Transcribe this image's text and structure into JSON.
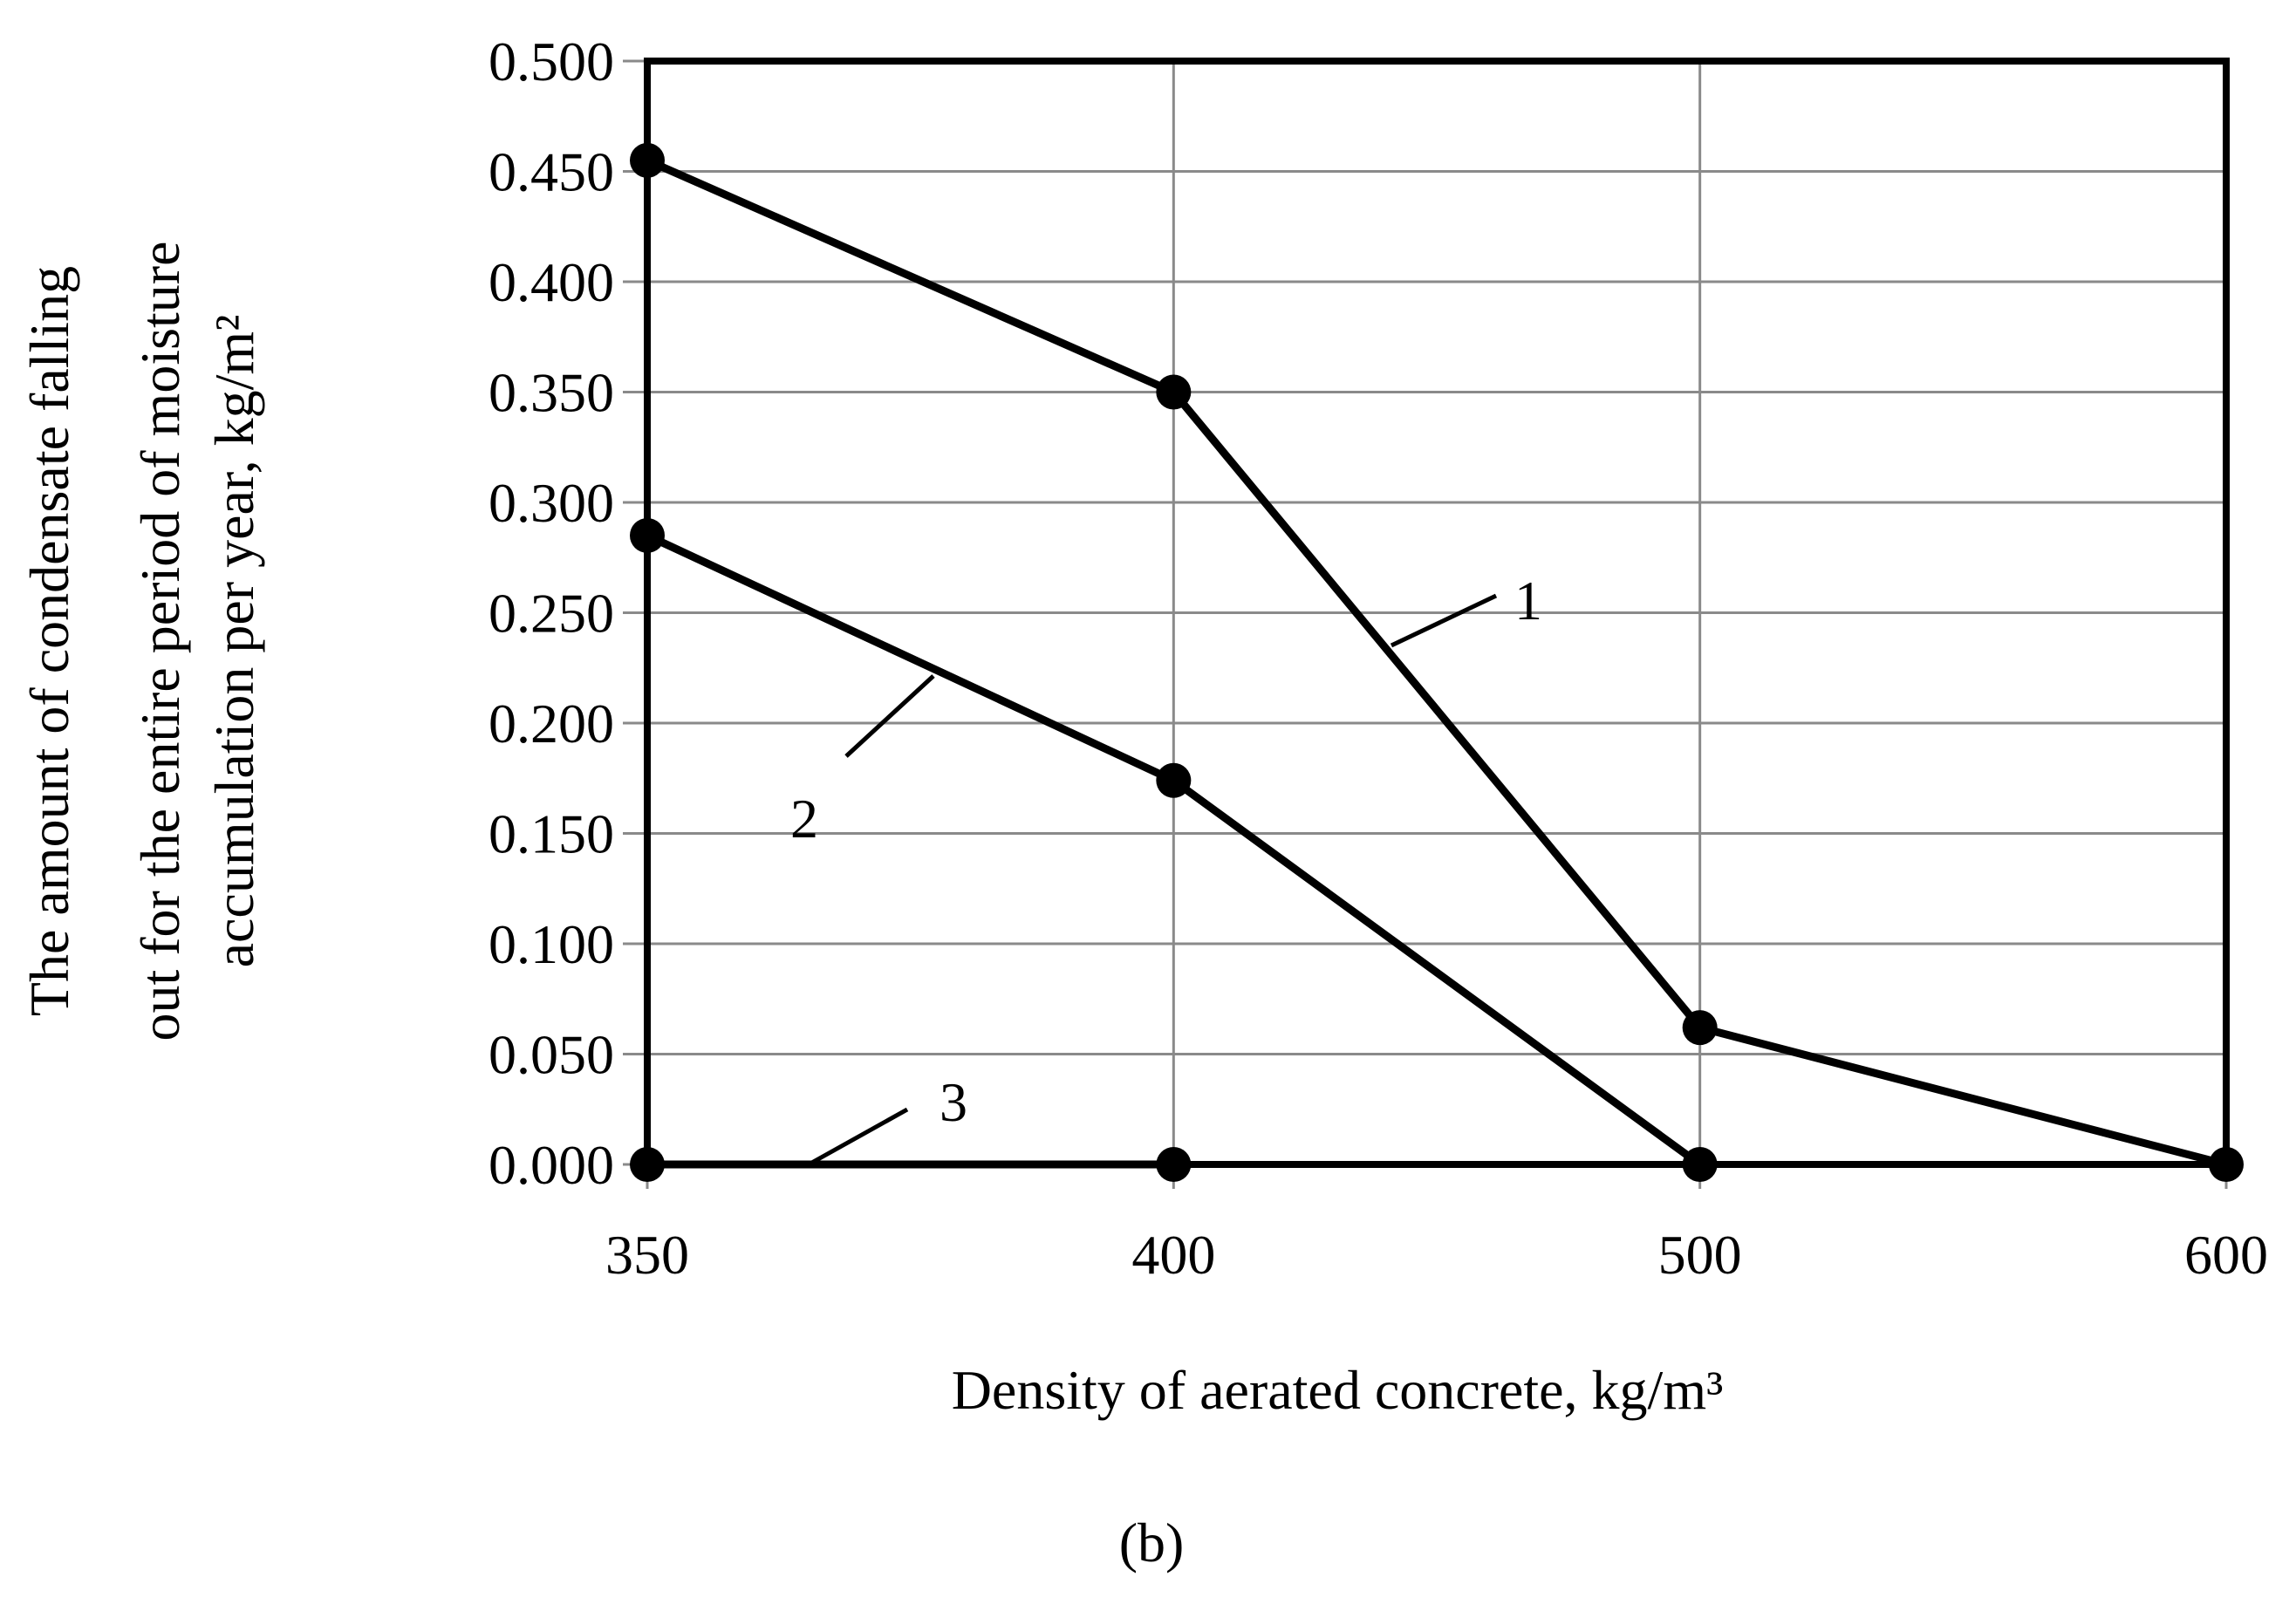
{
  "chart_data": {
    "type": "line",
    "x_categories": [
      "350",
      "400",
      "500",
      "600"
    ],
    "xlabel": "Density of aerated concrete, kg/m³",
    "ylabel_lines": [
      "The amount of condensate falling",
      "out for the entire period of moisture",
      "accumulation per year, kg/m²"
    ],
    "ylim": [
      0,
      0.5
    ],
    "y_ticks": [
      "0.000",
      "0.050",
      "0.100",
      "0.150",
      "0.200",
      "0.250",
      "0.300",
      "0.350",
      "0.400",
      "0.450",
      "0.500"
    ],
    "grid": true,
    "series": [
      {
        "name": "1",
        "values": [
          0.455,
          0.35,
          0.062,
          0.0
        ]
      },
      {
        "name": "2",
        "values": [
          0.285,
          0.174,
          0.0
        ]
      },
      {
        "name": "3",
        "values": [
          0.0,
          0.0
        ]
      }
    ],
    "panel_label": "(b)",
    "line_color": "#000000",
    "grid_color": "#8a8a8a"
  }
}
